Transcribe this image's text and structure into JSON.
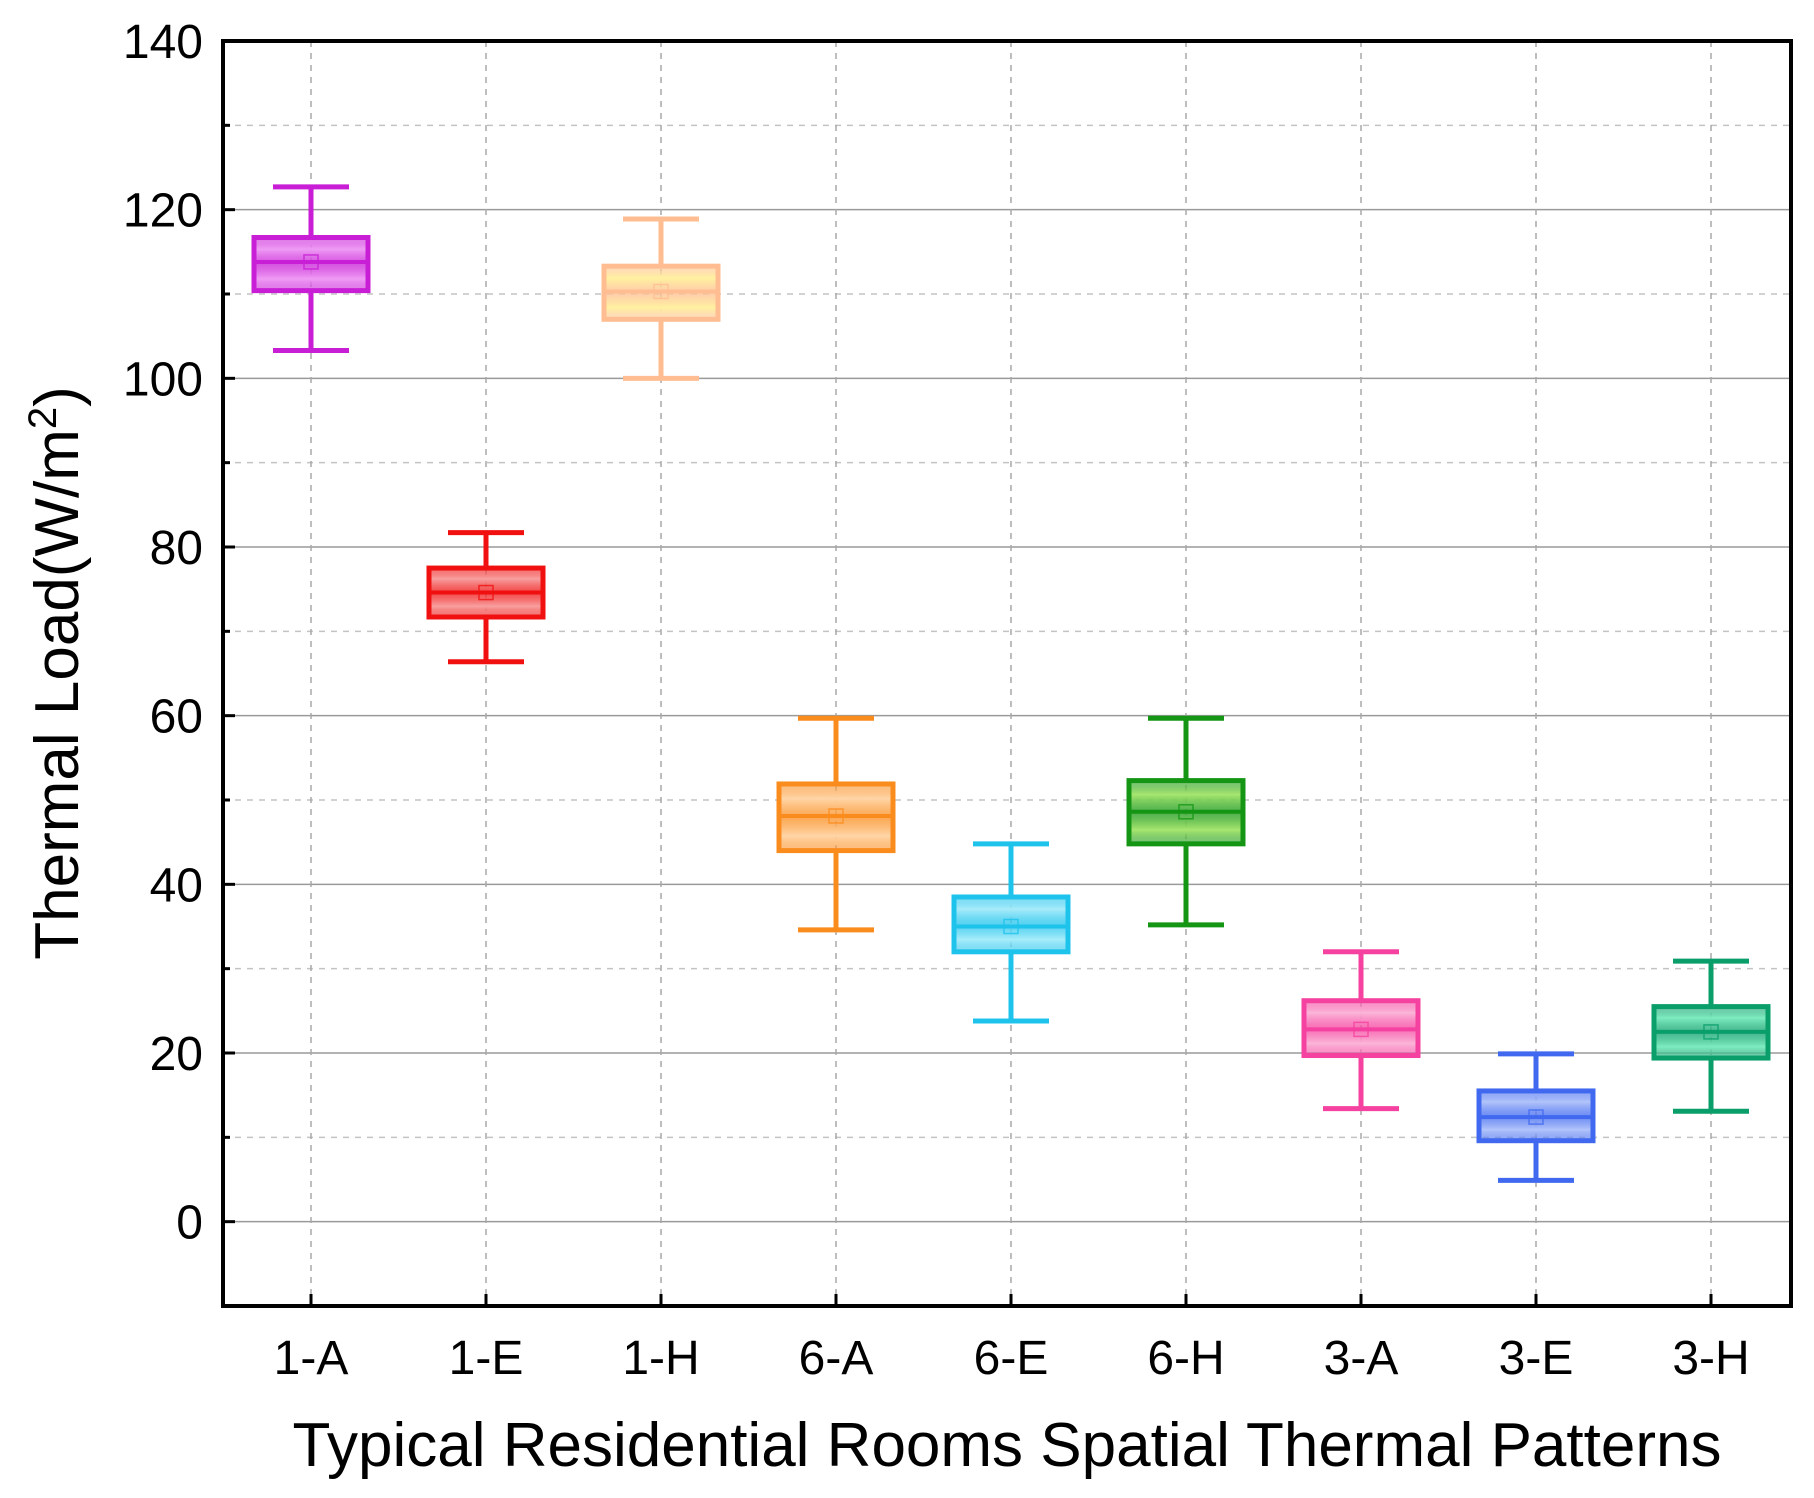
{
  "chart_data": {
    "type": "box",
    "title": "",
    "xlabel": "Typical Residential Rooms Spatial Thermal Patterns",
    "ylabel_prefix": "Thermal Load(W/m",
    "ylabel_sup": "2",
    "ylabel_suffix": ")",
    "ylim": [
      -10,
      140
    ],
    "yticks": [
      0,
      20,
      40,
      60,
      80,
      100,
      120,
      140
    ],
    "ytick_labels": [
      "0",
      "20",
      "40",
      "60",
      "80",
      "100",
      "120",
      "140"
    ],
    "grid": true,
    "categories": [
      "1-A",
      "1-E",
      "1-H",
      "6-A",
      "6-E",
      "6-H",
      "3-A",
      "3-E",
      "3-H"
    ],
    "boxes": [
      {
        "label": "1-A",
        "whisker_low": 103.3,
        "q1": 110.4,
        "median": 113.8,
        "mean": 113.8,
        "q3": 116.7,
        "whisker_high": 122.7,
        "color": "#c81ed6",
        "fill_light": "#ef9cf5"
      },
      {
        "label": "1-E",
        "whisker_low": 66.4,
        "q1": 71.7,
        "median": 74.6,
        "mean": 74.6,
        "q3": 77.5,
        "whisker_high": 81.7,
        "color": "#f01010",
        "fill_light": "#f8a0a0"
      },
      {
        "label": "1-H",
        "whisker_low": 100.0,
        "q1": 107.0,
        "median": 110.3,
        "mean": 110.3,
        "q3": 113.3,
        "whisker_high": 118.9,
        "color": "#ffbd91",
        "fill_light": "#fff2a0"
      },
      {
        "label": "6-A",
        "whisker_low": 34.6,
        "q1": 44.0,
        "median": 48.1,
        "mean": 48.1,
        "q3": 51.9,
        "whisker_high": 59.7,
        "color": "#fa8c1e",
        "fill_light": "#ffd6a8"
      },
      {
        "label": "6-E",
        "whisker_low": 23.8,
        "q1": 32.0,
        "median": 35.0,
        "mean": 35.0,
        "q3": 38.5,
        "whisker_high": 44.8,
        "color": "#1ec3ec",
        "fill_light": "#a8ecfa"
      },
      {
        "label": "6-H",
        "whisker_low": 35.2,
        "q1": 44.8,
        "median": 48.6,
        "mean": 48.6,
        "q3": 52.3,
        "whisker_high": 59.7,
        "color": "#149614",
        "fill_light": "#a8e670"
      },
      {
        "label": "3-A",
        "whisker_low": 13.4,
        "q1": 19.7,
        "median": 22.8,
        "mean": 22.8,
        "q3": 26.2,
        "whisker_high": 32.0,
        "color": "#f5419f",
        "fill_light": "#fbb6d8"
      },
      {
        "label": "3-E",
        "whisker_low": 4.9,
        "q1": 9.6,
        "median": 12.4,
        "mean": 12.4,
        "q3": 15.5,
        "whisker_high": 19.9,
        "color": "#4169f0",
        "fill_light": "#b2c4fa"
      },
      {
        "label": "3-H",
        "whisker_low": 13.1,
        "q1": 19.4,
        "median": 22.5,
        "mean": 22.5,
        "q3": 25.5,
        "whisker_high": 30.9,
        "color": "#0a9e6a",
        "fill_light": "#7eecc0"
      }
    ]
  }
}
